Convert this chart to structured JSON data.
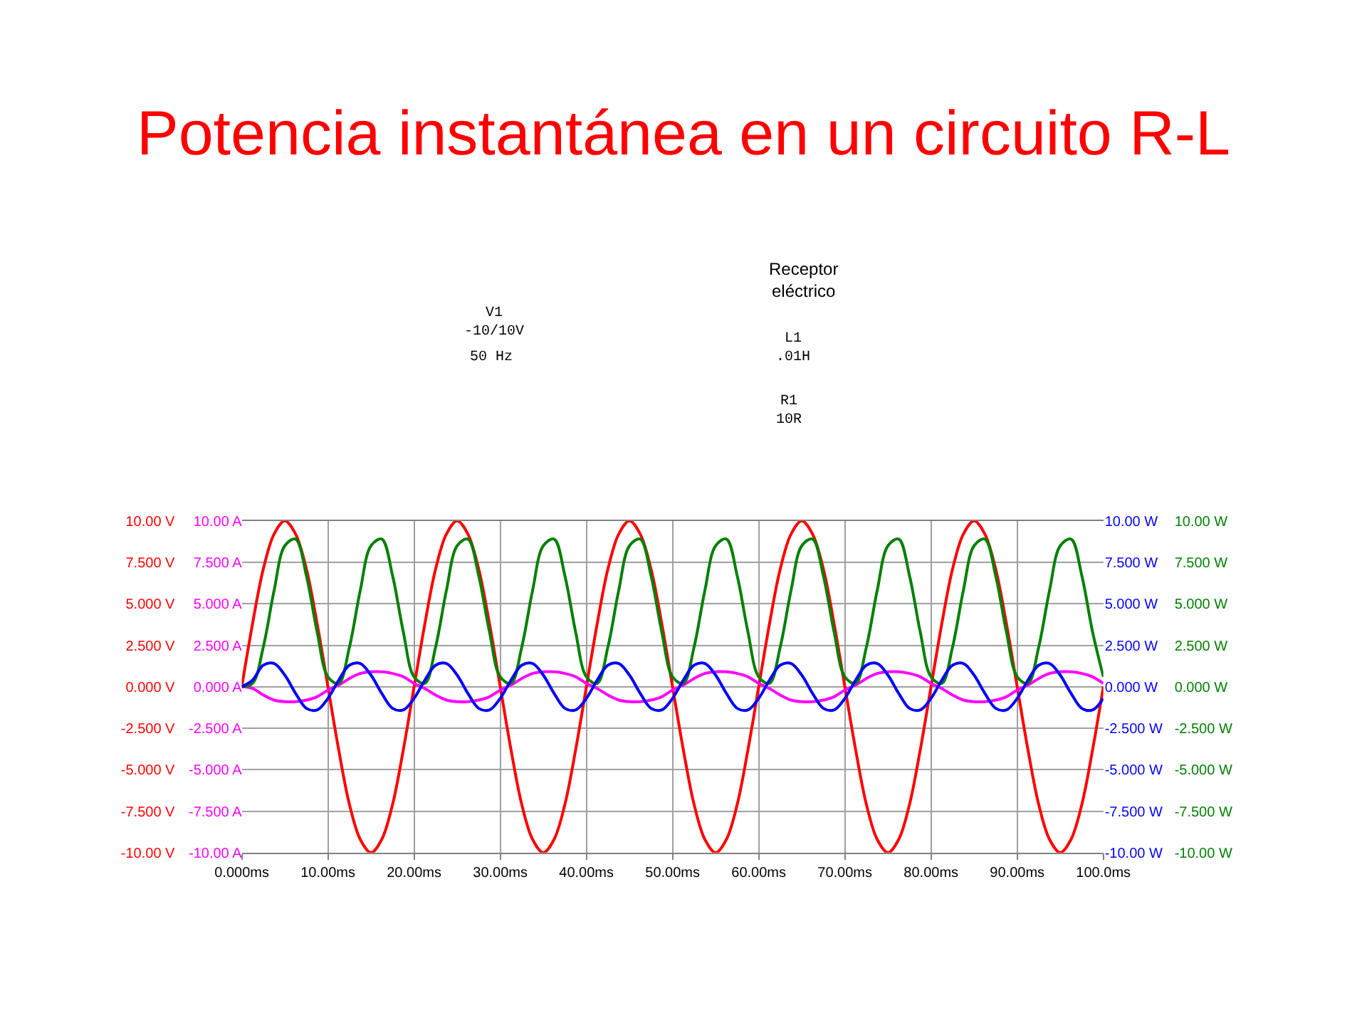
{
  "chart_data": {
    "type": "line",
    "title": "Potencia instantánea en un circuito R-L",
    "annotations": [
      "Receptor\neléctrico",
      "V1\n-10/10V",
      "50 Hz",
      "L1\n.01H",
      "R1\n10R"
    ],
    "x": [
      0,
      1.25,
      2.5,
      3.75,
      5,
      6.25,
      7.5,
      8.75,
      10,
      11.25,
      12.5,
      13.75,
      15,
      16.25,
      17.5,
      18.75,
      20,
      21.25,
      22.5,
      23.75,
      25,
      26.25,
      27.5,
      28.75,
      30,
      31.25,
      32.5,
      33.75,
      35,
      36.25,
      37.5,
      38.75,
      40,
      41.25,
      42.5,
      43.75,
      45,
      46.25,
      47.5,
      48.75,
      50,
      51.25,
      52.5,
      53.75,
      55,
      56.25,
      57.5,
      58.75,
      60,
      61.25,
      62.5,
      63.75,
      65,
      66.25,
      67.5,
      68.75,
      70,
      71.25,
      72.5,
      73.75,
      75,
      76.25,
      77.5,
      78.75,
      80,
      81.25,
      82.5,
      83.75,
      85,
      86.25,
      87.5,
      88.75,
      90,
      91.25,
      92.5,
      93.75,
      95,
      96.25,
      97.5,
      98.75,
      100
    ],
    "series": [
      {
        "color": "#ff0000",
        "values": [
          0,
          3.8,
          7.1,
          9.2,
          10,
          9.2,
          7.1,
          3.8,
          0,
          -3.8,
          -7.1,
          -9.2,
          -10,
          -9.2,
          -7.1,
          -3.8,
          0,
          3.8,
          7.1,
          9.2,
          10,
          9.2,
          7.1,
          3.8,
          0,
          -3.8,
          -7.1,
          -9.2,
          -10,
          -9.2,
          -7.1,
          -3.8,
          0,
          3.8,
          7.1,
          9.2,
          10,
          9.2,
          7.1,
          3.8,
          0,
          -3.8,
          -7.1,
          -9.2,
          -10,
          -9.2,
          -7.1,
          -3.8,
          0,
          3.8,
          7.1,
          9.2,
          10,
          9.2,
          7.1,
          3.8,
          0,
          -3.8,
          -7.1,
          -9.2,
          -10,
          -9.2,
          -7.1,
          -3.8,
          0,
          3.8,
          7.1,
          9.2,
          10,
          9.2,
          7.1,
          3.8,
          0,
          -3.8,
          -7.1,
          -9.2,
          -10,
          -9.2,
          -7.1,
          -3.8,
          0
        ]
      },
      {
        "color": "#ff00ff",
        "axis": "y2",
        "values": [
          0,
          -0.1,
          -0.5,
          -0.8,
          -0.9,
          -0.9,
          -0.8,
          -0.6,
          -0.2,
          0.1,
          0.5,
          0.8,
          0.9,
          0.9,
          0.8,
          0.6,
          0.2,
          -0.1,
          -0.5,
          -0.8,
          -0.9,
          -0.9,
          -0.8,
          -0.6,
          -0.2,
          0.1,
          0.5,
          0.8,
          0.9,
          0.9,
          0.8,
          0.6,
          0.2,
          -0.1,
          -0.5,
          -0.8,
          -0.9,
          -0.9,
          -0.8,
          -0.6,
          -0.2,
          0.1,
          0.5,
          0.8,
          0.9,
          0.9,
          0.8,
          0.6,
          0.2,
          -0.1,
          -0.5,
          -0.8,
          -0.9,
          -0.9,
          -0.8,
          -0.6,
          -0.2,
          0.1,
          0.5,
          0.8,
          0.9,
          0.9,
          0.8,
          0.6,
          0.2,
          -0.1,
          -0.5,
          -0.8,
          -0.9,
          -0.9,
          -0.8,
          -0.6,
          -0.2,
          0.1,
          0.5,
          0.8,
          0.9,
          0.9,
          0.8,
          0.6,
          0.2
        ]
      },
      {
        "color": "#008000",
        "axis": "y3",
        "values": [
          0,
          0.2,
          2.4,
          5.8,
          8.5,
          8.9,
          6.7,
          3.3,
          0.6,
          0.2,
          2.4,
          5.8,
          8.5,
          8.9,
          6.7,
          3.3,
          0.6,
          0.2,
          2.4,
          5.8,
          8.5,
          8.9,
          6.7,
          3.3,
          0.6,
          0.2,
          2.4,
          5.8,
          8.5,
          8.9,
          6.7,
          3.3,
          0.6,
          0.2,
          2.4,
          5.8,
          8.5,
          8.9,
          6.7,
          3.3,
          0.6,
          0.2,
          2.4,
          5.8,
          8.5,
          8.9,
          6.7,
          3.3,
          0.6,
          0.2,
          2.4,
          5.8,
          8.5,
          8.9,
          6.7,
          3.3,
          0.6,
          0.2,
          2.4,
          5.8,
          8.5,
          8.9,
          6.7,
          3.3,
          0.6,
          0.2,
          2.4,
          5.8,
          8.5,
          8.9,
          6.7,
          3.3,
          0.6,
          0.2,
          2.4,
          5.8,
          8.5,
          8.9,
          6.7,
          3.3,
          0.6
        ]
      },
      {
        "color": "#0000ff",
        "axis": "y3",
        "values": [
          0,
          0.4,
          1.3,
          1.4,
          0.7,
          -0.4,
          -1.3,
          -1.4,
          -0.7,
          0.4,
          1.3,
          1.4,
          0.7,
          -0.4,
          -1.3,
          -1.4,
          -0.7,
          0.4,
          1.3,
          1.4,
          0.7,
          -0.4,
          -1.3,
          -1.4,
          -0.7,
          0.4,
          1.3,
          1.4,
          0.7,
          -0.4,
          -1.3,
          -1.4,
          -0.7,
          0.4,
          1.3,
          1.4,
          0.7,
          -0.4,
          -1.3,
          -1.4,
          -0.7,
          0.4,
          1.3,
          1.4,
          0.7,
          -0.4,
          -1.3,
          -1.4,
          -0.7,
          0.4,
          1.3,
          1.4,
          0.7,
          -0.4,
          -1.3,
          -1.4,
          -0.7,
          0.4,
          1.3,
          1.4,
          0.7,
          -0.4,
          -1.3,
          -1.4,
          -0.7,
          0.4,
          1.3,
          1.4,
          0.7,
          -0.4,
          -1.3,
          -1.4,
          -0.7,
          0.4,
          1.3,
          1.4,
          0.7,
          -0.4,
          -1.3,
          -1.4,
          -0.7
        ]
      }
    ],
    "xlim": [
      0,
      100
    ],
    "xticks": [
      {
        "value": 0,
        "label": "0.000ms"
      },
      {
        "value": 10,
        "label": "10.00ms"
      },
      {
        "value": 20,
        "label": "20.00ms"
      },
      {
        "value": 30,
        "label": "30.00ms"
      },
      {
        "value": 40,
        "label": "40.00ms"
      },
      {
        "value": 50,
        "label": "50.00ms"
      },
      {
        "value": 60,
        "label": "60.00ms"
      },
      {
        "value": 70,
        "label": "70.00ms"
      },
      {
        "value": 80,
        "label": "80.00ms"
      },
      {
        "value": 90,
        "label": "90.00ms"
      },
      {
        "value": 100,
        "label": "100.0ms"
      }
    ],
    "ylim": [
      -10,
      10
    ],
    "yticks": [
      {
        "value": -10,
        "label": "-10.00 V"
      },
      {
        "value": -7.5,
        "label": "-7.500 V"
      },
      {
        "value": -5,
        "label": "-5.000 V"
      },
      {
        "value": -2.5,
        "label": "-2.500 V"
      },
      {
        "value": 0,
        "label": "0.000 V"
      },
      {
        "value": 2.5,
        "label": "2.500 V"
      },
      {
        "value": 5,
        "label": "5.000 V"
      },
      {
        "value": 7.5,
        "label": "7.500 V"
      },
      {
        "value": 10,
        "label": "10.00 V"
      }
    ],
    "y2lim": [
      -10,
      10
    ],
    "y2ticks": [
      {
        "value": -10,
        "label": "-10.00 A"
      },
      {
        "value": -7.5,
        "label": "-7.500 A"
      },
      {
        "value": -5,
        "label": "-5.000 A"
      },
      {
        "value": -2.5,
        "label": "-2.500 A"
      },
      {
        "value": 0,
        "label": "0.000 A"
      },
      {
        "value": 2.5,
        "label": "2.500 A"
      },
      {
        "value": 5,
        "label": "5.000 A"
      },
      {
        "value": 7.5,
        "label": "7.500 A"
      },
      {
        "value": 10,
        "label": "10.00 A"
      }
    ],
    "y3lim": [
      -10,
      10
    ],
    "y3ticks": [
      {
        "value": -10,
        "label": "-10.00 W"
      },
      {
        "value": -7.5,
        "label": "-7.500 W"
      },
      {
        "value": -5,
        "label": "-5.000 W"
      },
      {
        "value": -2.5,
        "label": "-2.500 W"
      },
      {
        "value": 0,
        "label": "0.000 W"
      },
      {
        "value": 2.5,
        "label": "2.500 W"
      },
      {
        "value": 5,
        "label": "5.000 W"
      },
      {
        "value": 7.5,
        "label": "7.500 W"
      },
      {
        "value": 10,
        "label": "10.00 W"
      }
    ],
    "grid": true,
    "marker": "none",
    "line_style": "solid"
  }
}
